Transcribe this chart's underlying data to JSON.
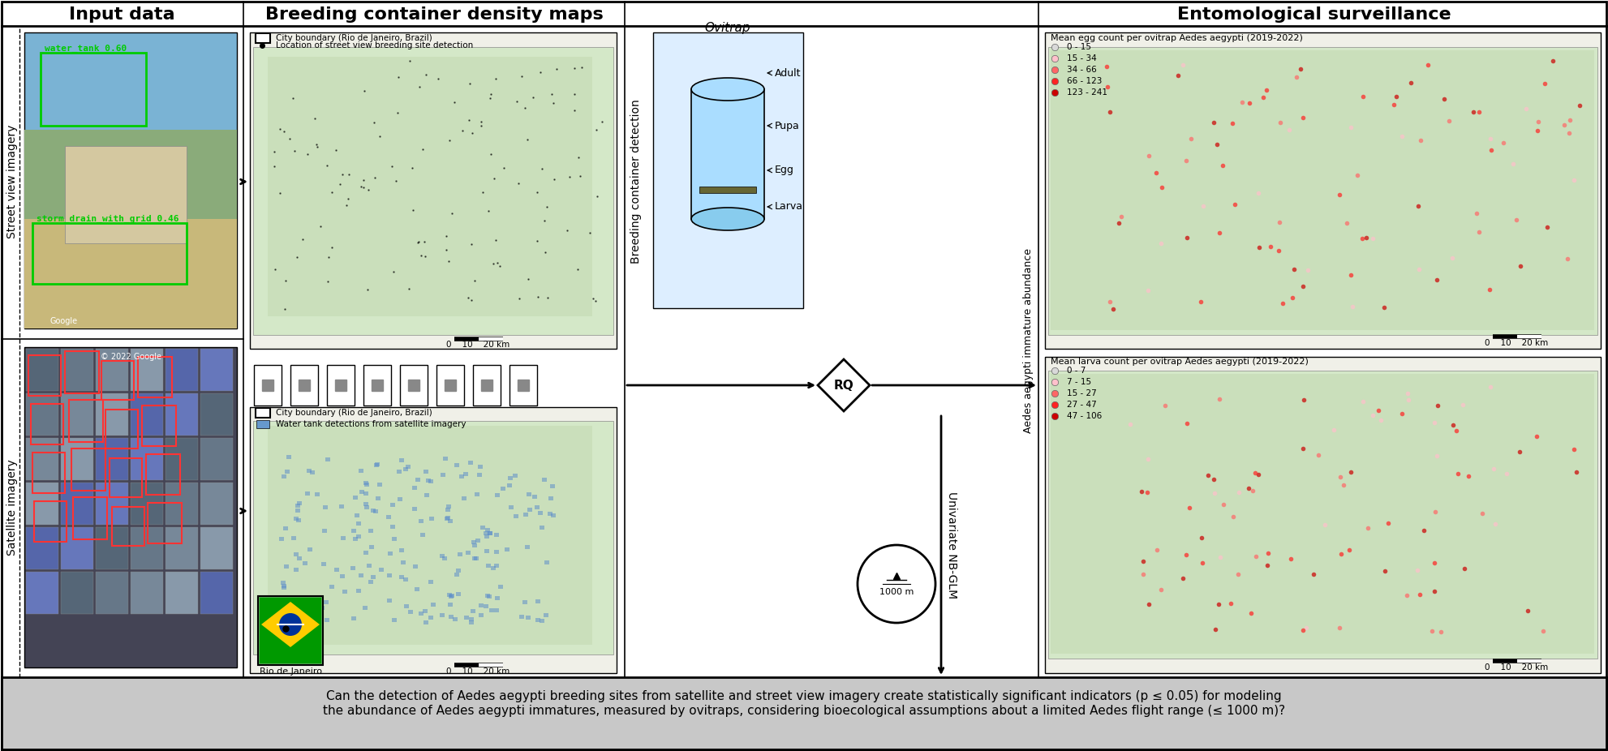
{
  "title_left": "Input data",
  "title_center": "Breeding container density maps",
  "title_right": "Entomological surveillance",
  "section_label_left_top": "Street view imagery",
  "section_label_left_bottom": "Satellite imagery",
  "vertical_label_center": "Breeding container detection",
  "vertical_label_right": "Aedes aegypti immature abundance",
  "vertical_label_nb": "Univariate NB-GLM",
  "map_top_legend_title": "Mean egg count per ovitrap Aedes aegypti (2019-2022)",
  "map_top_legend_items": [
    "0 - 15",
    "15 - 34",
    "34 - 66",
    "66 - 123",
    "123 - 241"
  ],
  "map_bottom_legend_title": "Mean larva count per ovitrap Aedes aegypti (2019-2022)",
  "map_bottom_legend_items": [
    "0 - 7",
    "7 - 15",
    "15 - 27",
    "27 - 47",
    "47 - 106"
  ],
  "legend_dot_colors": [
    "#d9d9d9",
    "#ffc0cb",
    "#ff6666",
    "#ff2222",
    "#cc0000"
  ],
  "street_legend_items": [
    "City boundary (Rio de Janeiro, Brazil)",
    "Location of street view breeding site detection"
  ],
  "satellite_legend_items": [
    "City boundary (Rio de Janeiro, Brazil)",
    "Water tank detections from satellite imagery"
  ],
  "satellite_legend_color": "#6699cc",
  "ovitrap_label": "Ovitrap",
  "ovitrap_stages": [
    "Adult",
    "Pupa",
    "Egg",
    "Larva"
  ],
  "rq_label": "RQ",
  "scale_label": "1000 m",
  "bottom_text_line1": "Can the detection of Aedes aegypti breeding sites from satellite and street view imagery create statistically significant indicators (p ≤ 0.05) for modeling",
  "bottom_text_line2": "the abundance of Aedes aegypti immatures, measured by ovitraps, considering bioecological assumptions about a limited Aedes flight range (≤ 1000 m)?",
  "brazil_label": "Rio de Janeiro",
  "bg_color": "#ffffff",
  "box_border_color": "#000000",
  "bottom_bg_color": "#c8c8c8",
  "icon_labels": [
    "water_tank 0.60",
    "storm_drain_with_grid 0.46"
  ],
  "icon_label_colors": [
    "#00cc00",
    "#00cc00"
  ]
}
